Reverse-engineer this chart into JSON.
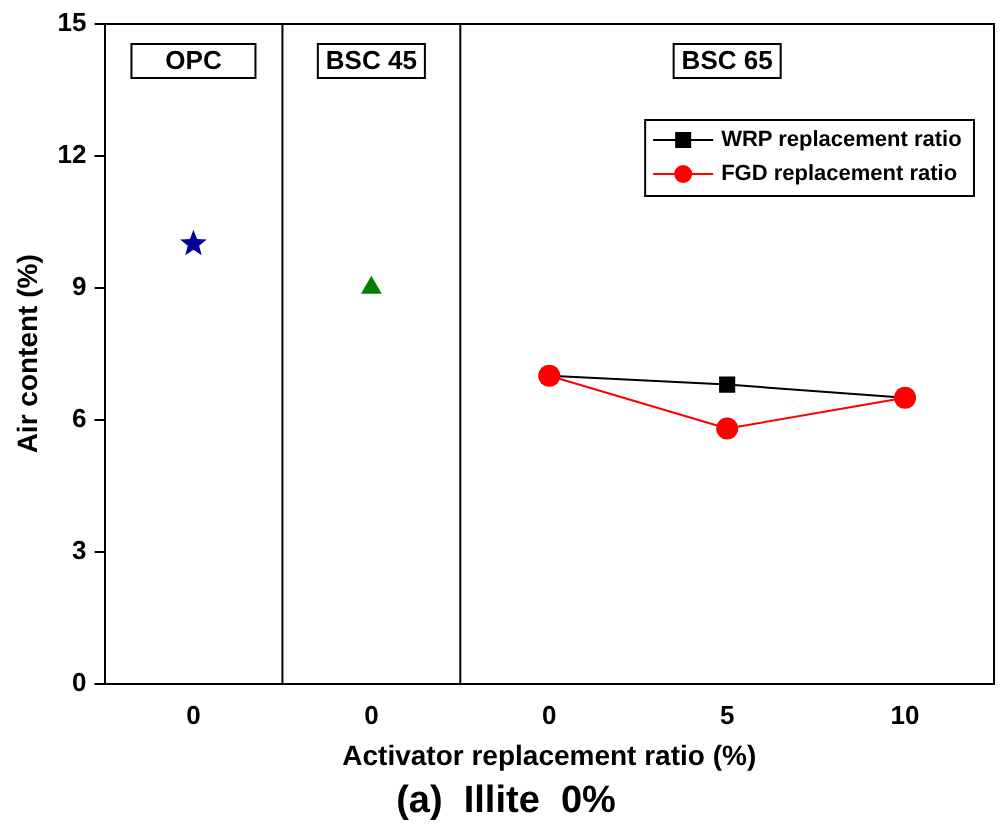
{
  "chart_data": {
    "type": "line",
    "title": "(a)  Illite  0%",
    "xlabel": "Activator replacement ratio (%)",
    "ylabel": "Air content (%)",
    "categories": [
      "0",
      "0",
      "0",
      "5",
      "10"
    ],
    "series": [
      {
        "type": "scatter",
        "marker": "star",
        "color": "#00009a",
        "values": [
          10,
          null,
          null,
          null,
          null
        ]
      },
      {
        "type": "scatter",
        "marker": "triangle",
        "color": "#008000",
        "values": [
          null,
          9,
          null,
          null,
          null
        ]
      },
      {
        "name": "WRP replacement ratio",
        "marker": "square",
        "color": "#000000",
        "values": [
          null,
          null,
          7,
          6.8,
          6.5
        ]
      },
      {
        "name": "FGD replacement ratio",
        "marker": "circle",
        "color": "#ff0000",
        "values": [
          null,
          null,
          7,
          5.8,
          6.5
        ]
      }
    ],
    "annotations": [
      "OPC",
      "BSC 45",
      "BSC 65"
    ],
    "ylim": [
      0,
      15
    ],
    "yticks": [
      0,
      3,
      6,
      9,
      12,
      15
    ],
    "grid": false,
    "legend": "top right"
  }
}
